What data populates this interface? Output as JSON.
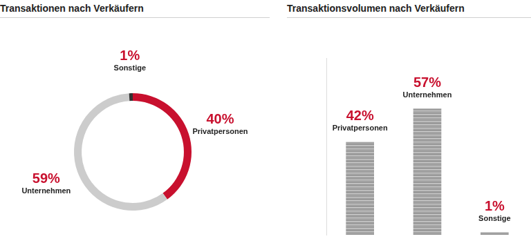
{
  "chart_data": [
    {
      "type": "doughnut",
      "title": "Transaktionen nach Verkäufern",
      "categories": [
        "Privatpersonen",
        "Unternehmen",
        "Sonstige"
      ],
      "values": [
        40,
        59,
        1
      ],
      "value_labels": [
        "40%",
        "59%",
        "1%"
      ],
      "colors": [
        "#c8102e",
        "#cccccc",
        "#333333"
      ],
      "data_labels": true
    },
    {
      "type": "bar",
      "title": "Transaktionsvolumen nach Verkäufern",
      "categories": [
        "Privatpersonen",
        "Unternehmen",
        "Sonstige"
      ],
      "values": [
        42,
        57,
        1
      ],
      "value_labels": [
        "42%",
        "57%",
        "1%"
      ],
      "color": "#a3a3a3",
      "ylim": [
        0,
        80
      ],
      "tick_labels": false,
      "grid": false,
      "data_labels": true
    }
  ]
}
